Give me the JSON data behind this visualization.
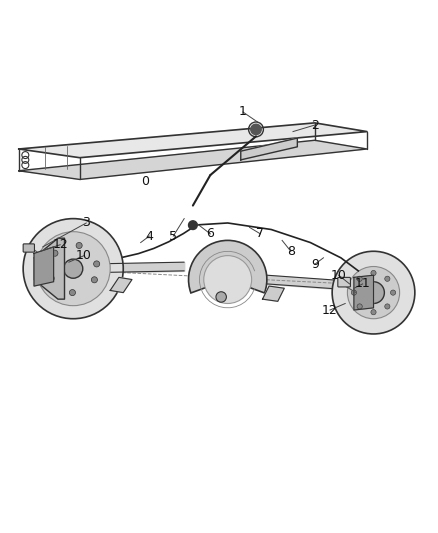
{
  "background_color": "#ffffff",
  "figure_width": 4.38,
  "figure_height": 5.33,
  "dpi": 100,
  "line_color": "#333333",
  "dark_color": "#222222",
  "label_color": "#111111",
  "annotation_fontsize": 9,
  "leader_color": "#444444"
}
